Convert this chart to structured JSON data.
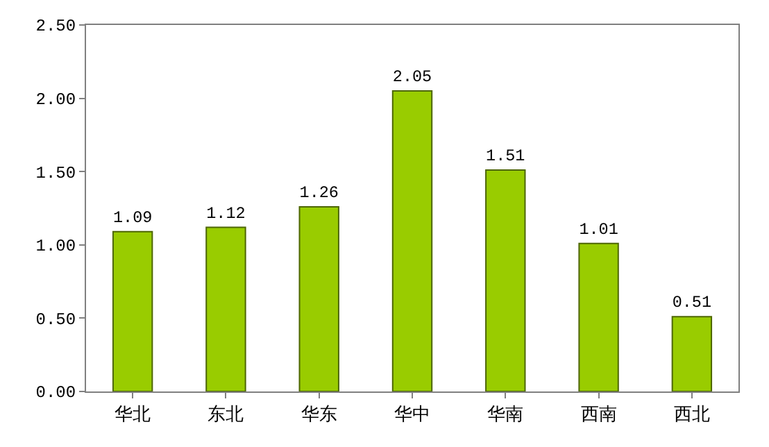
{
  "chart_data": {
    "type": "bar",
    "categories": [
      "华北",
      "东北",
      "华东",
      "华中",
      "华南",
      "西南",
      "西北"
    ],
    "values": [
      1.09,
      1.12,
      1.26,
      2.05,
      1.51,
      1.01,
      0.51
    ],
    "color": "#99cc00",
    "data_labels": true,
    "ylim": [
      0,
      2.5
    ],
    "yticks": [
      {
        "value": 0,
        "label": "0.00"
      },
      {
        "value": 0.5,
        "label": "0.50"
      },
      {
        "value": 1,
        "label": "1.00"
      },
      {
        "value": 1.5,
        "label": "1.50"
      },
      {
        "value": 2,
        "label": "2.00"
      },
      {
        "value": 2.5,
        "label": "2.50"
      }
    ]
  }
}
